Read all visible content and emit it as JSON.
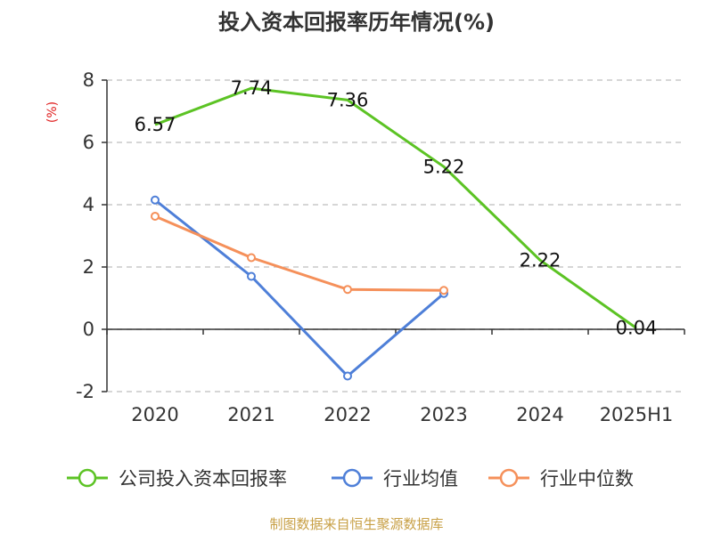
{
  "chart_data": {
    "type": "line",
    "title": "投入资本回报率历年情况(%)",
    "ylabel": "(%)",
    "xlabel": "",
    "categories": [
      "2020",
      "2021",
      "2022",
      "2023",
      "2024",
      "2025H1"
    ],
    "ylim": [
      -2,
      8
    ],
    "yticks": [
      "-2",
      "0",
      "2",
      "4",
      "6",
      "8"
    ],
    "grid": true,
    "legend_position": "bottom",
    "series": [
      {
        "name": "公司投入资本回报率",
        "color": "#5cc324",
        "values": [
          6.57,
          7.74,
          7.36,
          5.22,
          2.22,
          0.04
        ],
        "labels": [
          "6.57",
          "7.74",
          "7.36",
          "5.22",
          "2.22",
          "0.04"
        ],
        "show_markers": false,
        "show_labels": true
      },
      {
        "name": "行业均值",
        "color": "#4e7fd8",
        "values": [
          4.15,
          1.7,
          -1.5,
          1.15,
          null,
          null
        ],
        "show_markers": true,
        "show_labels": false
      },
      {
        "name": "行业中位数",
        "color": "#f5905a",
        "values": [
          3.63,
          2.3,
          1.28,
          1.25,
          null,
          null
        ],
        "show_markers": true,
        "show_labels": false
      }
    ]
  },
  "source": "制图数据来自恒生聚源数据库"
}
